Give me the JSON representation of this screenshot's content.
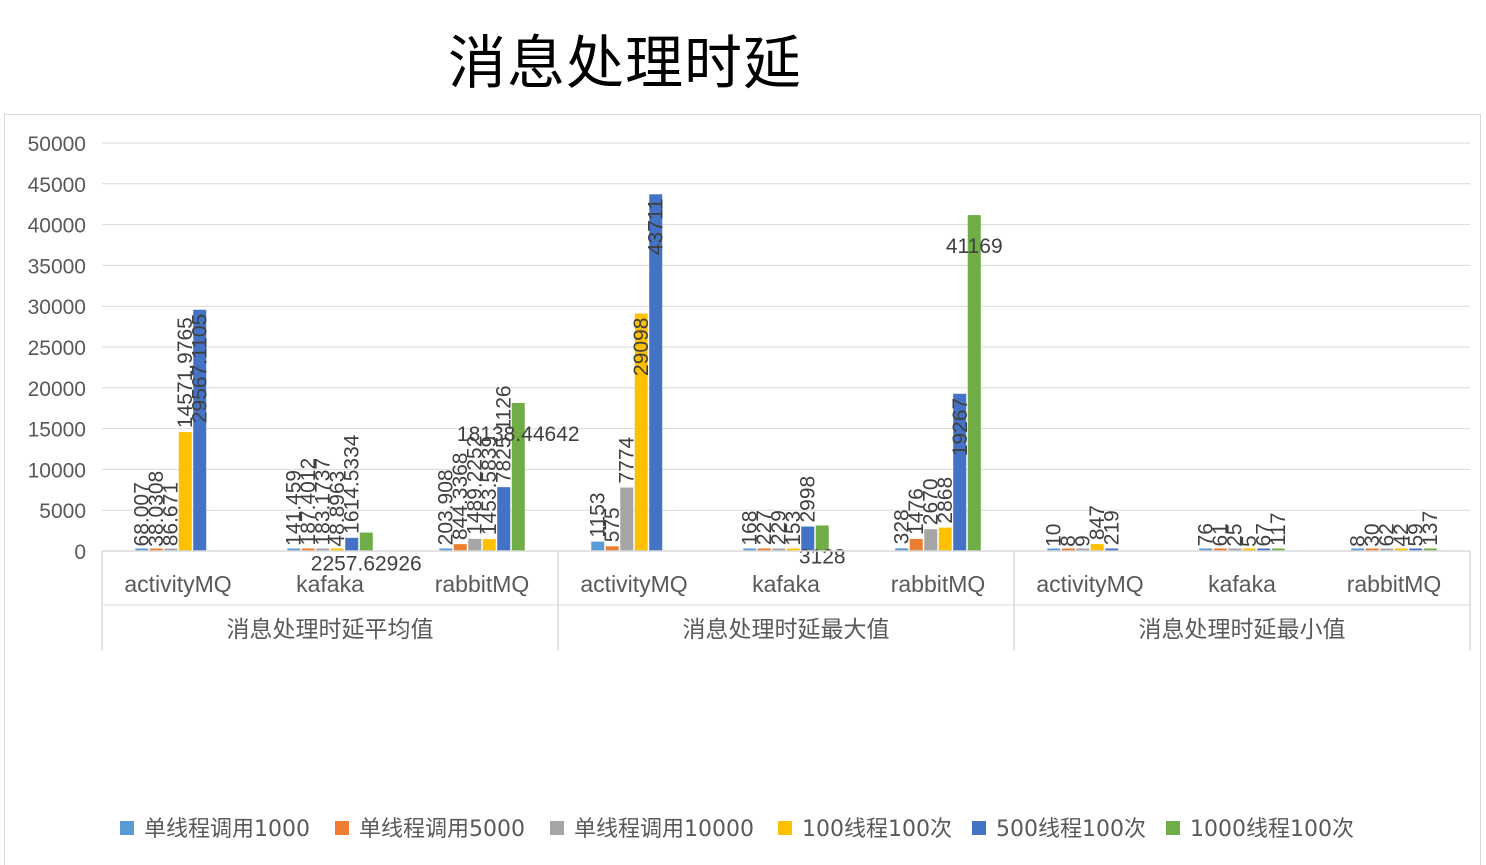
{
  "title": "消息处理时延",
  "chart_data": {
    "type": "bar",
    "ylim": [
      0,
      50000
    ],
    "yticks": [
      0,
      5000,
      10000,
      15000,
      20000,
      25000,
      30000,
      35000,
      40000,
      45000,
      50000
    ],
    "grid": true,
    "legend_position": "bottom",
    "groups": [
      {
        "label": "消息处理时延平均值",
        "categories": [
          {
            "label": "activityMQ",
            "values": [
              68.007,
              38.0308,
              86.671,
              14571.9765,
              29567.1105,
              null
            ],
            "labels": [
              "68.007",
              "38.0308",
              "86.671",
              "14571.9765",
              "29567.1105",
              ""
            ]
          },
          {
            "label": "kafaka",
            "values": [
              141.459,
              187.4012,
              183.1737,
              48.8963,
              1614.5334,
              2257.62926
            ],
            "labels": [
              "141.459",
              "187.4012",
              "183.1737",
              "48.8963",
              "1614.5334",
              "2257.62926"
            ]
          },
          {
            "label": "rabbitMQ",
            "values": [
              203.908,
              844.3368,
              1489.2252,
              1453.5839,
              7825.1126,
              18138.44642
            ],
            "labels": [
              "203.908",
              "844.3368",
              "1489.2252",
              "1453.5839",
              "7825.1126",
              "18138.44642"
            ]
          }
        ]
      },
      {
        "label": "消息处理时延最大值",
        "categories": [
          {
            "label": "activityMQ",
            "values": [
              1153,
              575,
              7774,
              29098,
              43711,
              null
            ],
            "labels": [
              "1153",
              "575",
              "7774",
              "29098",
              "43711",
              ""
            ]
          },
          {
            "label": "kafaka",
            "values": [
              168,
              227,
              229,
              153,
              2998,
              3128
            ],
            "labels": [
              "168",
              "227",
              "229",
              "153",
              "2998",
              "3128"
            ]
          },
          {
            "label": "rabbitMQ",
            "values": [
              328,
              1476,
              2670,
              2868,
              19267,
              41169
            ],
            "labels": [
              "328",
              "1476",
              "2670",
              "2868",
              "19267",
              "41169"
            ]
          }
        ]
      },
      {
        "label": "消息处理时延最小值",
        "categories": [
          {
            "label": "activityMQ",
            "values": [
              10,
              8,
              9,
              847,
              219,
              null
            ],
            "labels": [
              "10",
              "8",
              "9",
              "847",
              "219",
              ""
            ]
          },
          {
            "label": "kafaka",
            "values": [
              76,
              61,
              25,
              5,
              67,
              117
            ],
            "labels": [
              "76",
              "61",
              "25",
              "5",
              "67",
              "117"
            ]
          },
          {
            "label": "rabbitMQ",
            "values": [
              8,
              30,
              62,
              42,
              59,
              137
            ],
            "labels": [
              "8",
              "30",
              "62",
              "42",
              "59",
              "137"
            ]
          }
        ]
      }
    ],
    "series": [
      {
        "name": "单线程调用1000",
        "color": "#5b9bd5"
      },
      {
        "name": "单线程调用5000",
        "color": "#ed7d31"
      },
      {
        "name": "单线程调用10000",
        "color": "#a5a5a5"
      },
      {
        "name": "100线程100次",
        "color": "#ffc000"
      },
      {
        "name": "500线程100次",
        "color": "#4472c4"
      },
      {
        "name": "1000线程100次",
        "color": "#70ad47"
      }
    ]
  }
}
